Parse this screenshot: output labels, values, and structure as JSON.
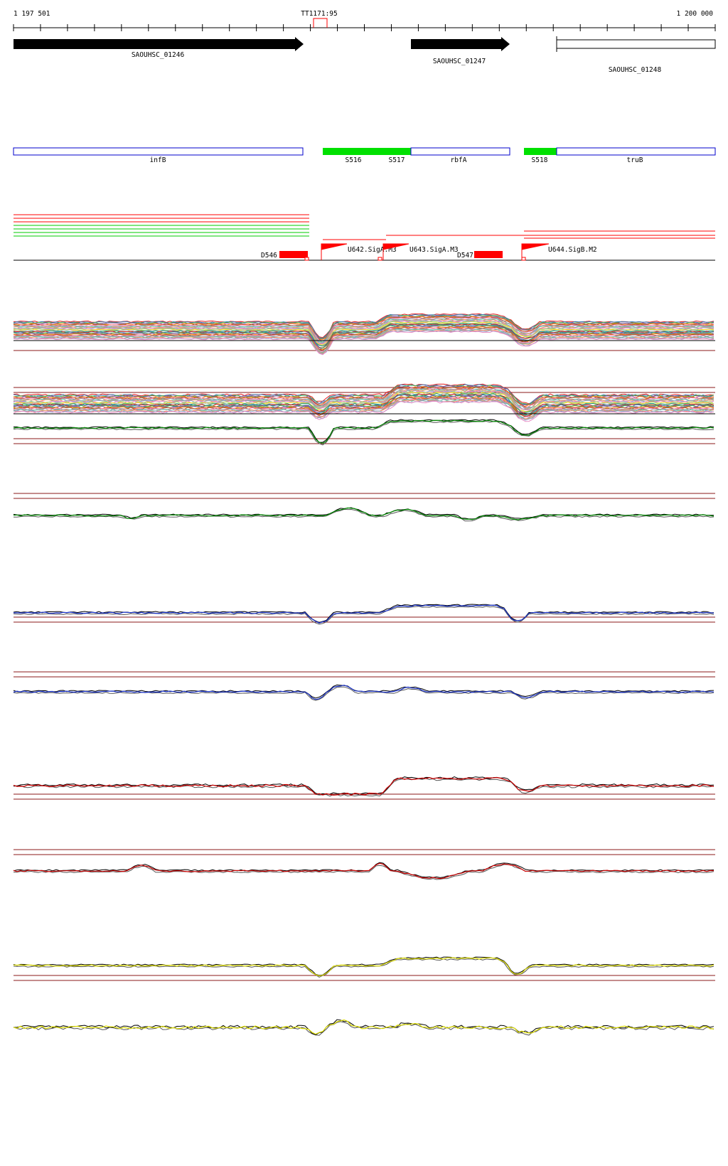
{
  "ruler": {
    "start_label": "1 197 501",
    "end_label": "1 200 000",
    "terminator_label": "TT1171:95"
  },
  "genes": [
    {
      "name": "SAOUHSC_01246",
      "style": "filled-arrow"
    },
    {
      "name": "SAOUHSC_01247",
      "style": "filled-arrow"
    },
    {
      "name": "SAOUHSC_01248",
      "style": "open-box"
    }
  ],
  "segments": {
    "annotations": [
      "infB",
      "rbfA",
      "truB"
    ],
    "segment_labels": [
      "S516",
      "S517",
      "S518"
    ]
  },
  "promoters_and_downshifts": {
    "downshifts": [
      "D546",
      "D547"
    ],
    "promoters": [
      "U642.SigA.M3",
      "U643.SigA.M3",
      "U644.SigB.M2"
    ]
  },
  "colors": {
    "gene_fill": "#000000",
    "segment_green": "#00e000",
    "segment_outline": "#0000cc",
    "feature_red": "#ff0000",
    "threshold_line": "#8b1a1a",
    "track_green": "#008800",
    "track_blue": "#1a33cc",
    "track_red": "#cc0000",
    "track_yellow": "#dddd00"
  },
  "expression_tracks": [
    {
      "id": "all-conditions-1",
      "color": "multi"
    },
    {
      "id": "all-conditions-2",
      "color": "multi"
    },
    {
      "id": "green-1",
      "color": "green"
    },
    {
      "id": "green-2",
      "color": "green"
    },
    {
      "id": "blue-1",
      "color": "blue"
    },
    {
      "id": "blue-2",
      "color": "blue"
    },
    {
      "id": "red-1",
      "color": "red"
    },
    {
      "id": "red-2",
      "color": "red"
    },
    {
      "id": "yellow-1",
      "color": "yellow"
    },
    {
      "id": "yellow-2",
      "color": "yellow"
    }
  ]
}
